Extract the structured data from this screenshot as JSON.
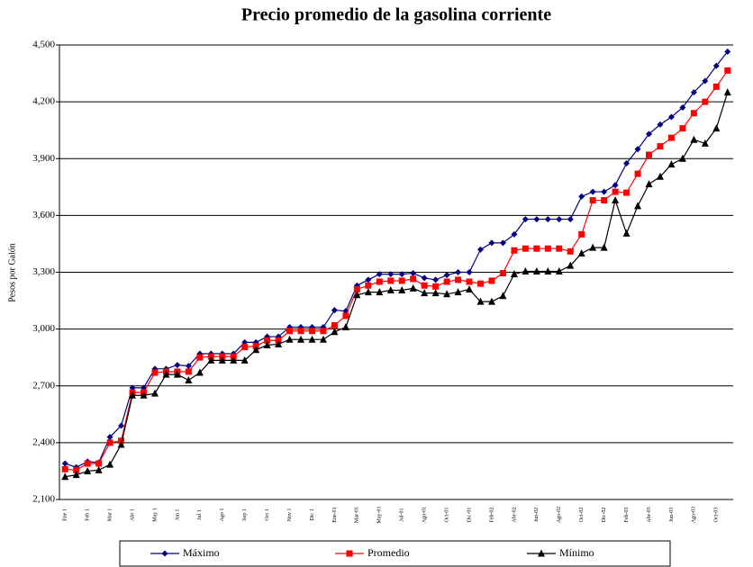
{
  "chart_data": {
    "type": "line",
    "title": "Precio promedio de la gasolina corriente",
    "y_label": "Pesos por Galón",
    "categories": [
      "Ene 1",
      null,
      "Feb 1",
      null,
      "Mar 1",
      null,
      "Abr 1",
      null,
      "May 1",
      null,
      "Jun 1",
      null,
      "Jul 1",
      null,
      "Ago 1",
      null,
      "Sep 1",
      null,
      "Oct 1",
      null,
      "Nov 1",
      null,
      "Dic 1",
      null,
      "Ene-01",
      null,
      "Mar-01",
      null,
      "May-01",
      null,
      "Jul-01",
      null,
      "Ago-01",
      null,
      "Oct-01",
      null,
      "Dic-01",
      null,
      "Feb-02",
      null,
      "Abr-02",
      null,
      "Jun-02",
      null,
      "Ago-02",
      null,
      "Oct-02",
      null,
      "Dic-02",
      null,
      "Feb-03",
      null,
      "Abr-03",
      null,
      "Jun-03",
      null,
      "Ago-03",
      null,
      "Oct-03",
      null
    ],
    "series": [
      {
        "name": "Máximo",
        "color": "#000080",
        "marker": "diamond",
        "values": [
          2290,
          2270,
          2300,
          2295,
          2430,
          2490,
          2690,
          2690,
          2790,
          2790,
          2810,
          2805,
          2870,
          2870,
          2870,
          2870,
          2930,
          2930,
          2960,
          2960,
          3010,
          3010,
          3010,
          3010,
          3100,
          3095,
          3230,
          3260,
          3290,
          3290,
          3290,
          3295,
          3270,
          3260,
          3285,
          3300,
          3300,
          3420,
          3455,
          3455,
          3500,
          3580,
          3580,
          3580,
          3580,
          3580,
          3700,
          3725,
          3725,
          3760,
          3875,
          3950,
          4030,
          4080,
          4120,
          4170,
          4250,
          4310,
          4390,
          4465
        ]
      },
      {
        "name": "Promedio",
        "color": "#ff0000",
        "marker": "square",
        "values": [
          2260,
          2255,
          2290,
          2290,
          2400,
          2410,
          2665,
          2665,
          2770,
          2775,
          2775,
          2775,
          2850,
          2855,
          2855,
          2855,
          2905,
          2910,
          2940,
          2940,
          2990,
          2990,
          2990,
          2990,
          3020,
          3070,
          3210,
          3230,
          3250,
          3255,
          3255,
          3265,
          3230,
          3225,
          3250,
          3260,
          3250,
          3240,
          3255,
          3295,
          3415,
          3425,
          3425,
          3425,
          3425,
          3410,
          3500,
          3680,
          3680,
          3725,
          3720,
          3820,
          3920,
          3965,
          4010,
          4060,
          4140,
          4200,
          4280,
          4365
        ]
      },
      {
        "name": "Mínimo",
        "color": "#000000",
        "marker": "triangle",
        "values": [
          2220,
          2230,
          2250,
          2255,
          2285,
          2390,
          2650,
          2650,
          2660,
          2760,
          2760,
          2730,
          2770,
          2835,
          2835,
          2835,
          2835,
          2890,
          2915,
          2920,
          2945,
          2945,
          2945,
          2945,
          2985,
          3010,
          3180,
          3195,
          3195,
          3205,
          3205,
          3215,
          3190,
          3190,
          3185,
          3195,
          3210,
          3145,
          3145,
          3175,
          3290,
          3305,
          3305,
          3305,
          3305,
          3335,
          3400,
          3430,
          3430,
          3680,
          3505,
          3650,
          3765,
          3805,
          3870,
          3900,
          4000,
          3980,
          4060,
          4250
        ]
      }
    ],
    "ylim": [
      2100,
      4500
    ],
    "yticks": [
      {
        "value": 2100,
        "label": "2,100"
      },
      {
        "value": 2400,
        "label": "2,400"
      },
      {
        "value": 2700,
        "label": "2,700"
      },
      {
        "value": 3000,
        "label": "3,000"
      },
      {
        "value": 3300,
        "label": "3,300"
      },
      {
        "value": 3600,
        "label": "3,600"
      },
      {
        "value": 3900,
        "label": "3,900"
      },
      {
        "value": 4200,
        "label": "4,200"
      },
      {
        "value": 4500,
        "label": "4,500"
      }
    ],
    "grid": true,
    "legend": "bottom"
  }
}
